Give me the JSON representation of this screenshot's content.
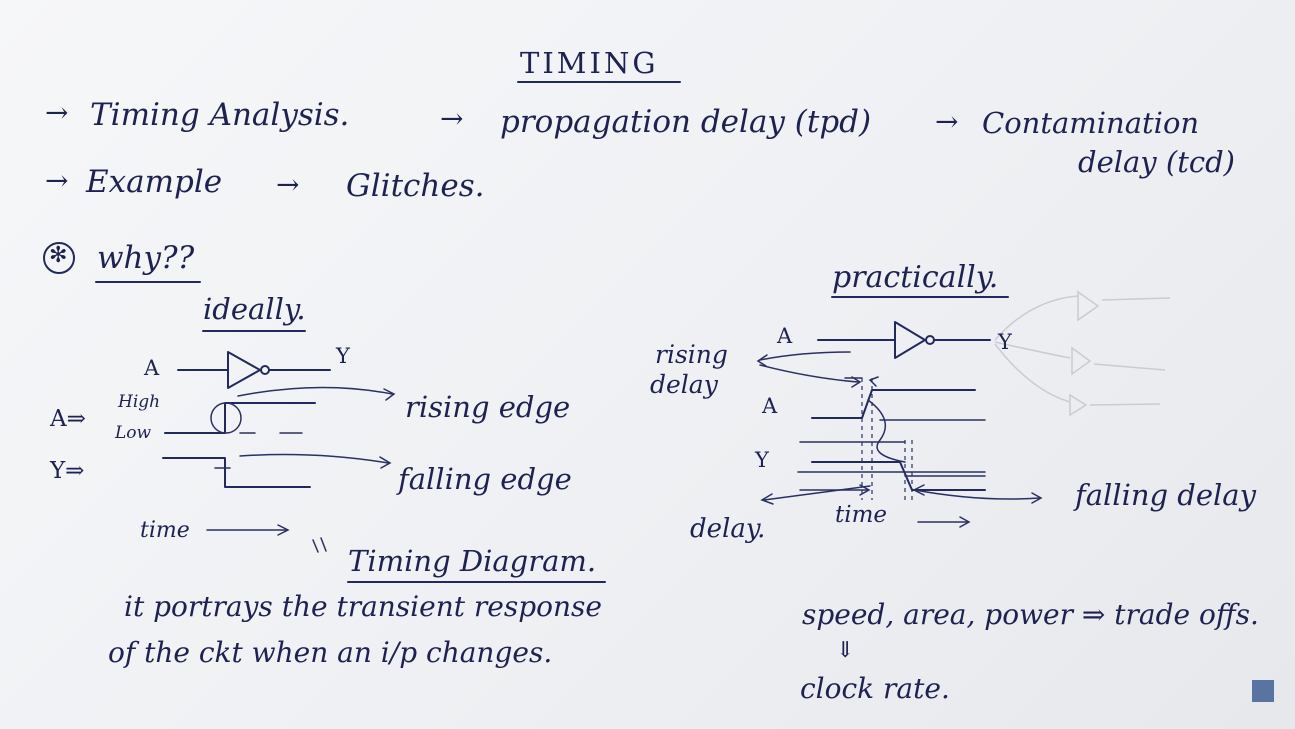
{
  "title": "TIMING",
  "topics": {
    "timing_analysis": "Timing Analysis.",
    "propagation_delay": "propagation delay (tpd)",
    "contamination_line1": "Contamination",
    "contamination_line2": "delay (tcd)",
    "example": "Example",
    "glitches": "Glitches."
  },
  "arrows": {
    "right": "→",
    "double": "⇒"
  },
  "why": {
    "bullet": "✻",
    "label": "why??"
  },
  "ideally": {
    "heading": "ideally.",
    "input_label": "A",
    "output_label": "Y",
    "a_row": "A⇒",
    "y_row": "Y⇒",
    "high": "High",
    "low": "Low",
    "rising_edge": "rising edge",
    "falling_edge": "falling edge",
    "time": "time",
    "timing_diagram": "Timing Diagram.",
    "definition_line1": "it portrays the transient response",
    "definition_line2": "of the ckt when an i/p changes."
  },
  "practically": {
    "heading": "practically.",
    "input_label": "A",
    "output_label": "Y",
    "a_row": "A",
    "y_row": "Y",
    "rising_delay_line1": "rising",
    "rising_delay_line2": "delay",
    "falling_delay": "falling delay",
    "delay": "delay.",
    "time": "time"
  },
  "tradeoffs": {
    "text": "speed, area, power ⇒ trade offs.",
    "down_arrow": "⇓",
    "clock_rate": "clock rate."
  },
  "colors": {
    "ink": "#1d2250",
    "board": "#f2f3f6",
    "ghost": "#c9ccd4",
    "logo": "#2b4c8a"
  }
}
